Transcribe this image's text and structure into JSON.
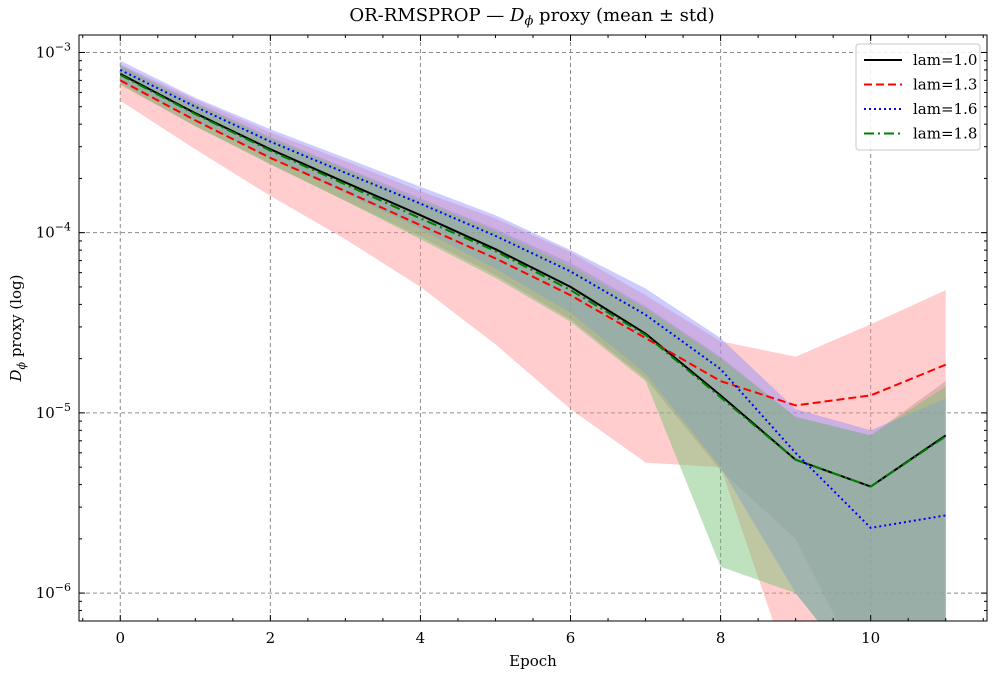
{
  "chart_data": {
    "type": "line",
    "title_prefix": "OR-RMSPROP — ",
    "title_symbol": "D",
    "title_subscript": "ϕ",
    "title_suffix": " proxy (mean ± std)",
    "xlabel": "Epoch",
    "ylabel_symbol": "D",
    "ylabel_subscript": "ϕ",
    "ylabel_suffix": " proxy (log)",
    "yscale": "log",
    "xlim": [
      -0.55,
      11.55
    ],
    "ylim": [
      7e-07,
      0.00125
    ],
    "xticks": [
      0,
      2,
      4,
      6,
      8,
      10
    ],
    "xtick_labels": [
      "0",
      "2",
      "4",
      "6",
      "8",
      "10"
    ],
    "yticks": [
      1e-06,
      1e-05,
      0.0001,
      0.001
    ],
    "ytick_labels": [
      {
        "base": "10",
        "exp": "−6"
      },
      {
        "base": "10",
        "exp": "−5"
      },
      {
        "base": "10",
        "exp": "−4"
      },
      {
        "base": "10",
        "exp": "−3"
      }
    ],
    "grid": true,
    "legend_position": "top-right",
    "x": [
      0,
      1,
      2,
      3,
      4,
      5,
      6,
      7,
      8,
      9,
      10,
      11
    ],
    "series": [
      {
        "name": "lam=1.0",
        "color": "#000000",
        "fill": "#8a8a8a",
        "dash": "solid",
        "values": [
          0.00076,
          0.00046,
          0.00029,
          0.00019,
          0.000125,
          8.1e-05,
          5e-05,
          2.75e-05,
          1.25e-05,
          5.5e-06,
          3.9e-06,
          7.5e-06
        ],
        "lower": [
          0.00066,
          0.00039,
          0.00024,
          0.00015,
          9.5e-05,
          5.8e-05,
          3.3e-05,
          1.55e-05,
          4.8e-06,
          2e-06,
          3e-07,
          3e-07
        ],
        "upper": [
          0.00085,
          0.00053,
          0.00034,
          0.00023,
          0.000155,
          0.000105,
          6.8e-05,
          3.9e-05,
          2.05e-05,
          9.5e-06,
          7.5e-06,
          1.5e-05
        ]
      },
      {
        "name": "lam=1.3",
        "color": "#ff0000",
        "fill": "#ff9090",
        "dash": "dashed",
        "values": [
          0.0007,
          0.00042,
          0.00026,
          0.00017,
          0.00011,
          7.2e-05,
          4.5e-05,
          2.6e-05,
          1.5e-05,
          1.1e-05,
          1.25e-05,
          1.85e-05
        ],
        "lower": [
          0.00054,
          0.00029,
          0.00016,
          9.2e-05,
          5e-05,
          2.4e-05,
          1.05e-05,
          5.3e-06,
          5e-06,
          3e-07,
          3e-07,
          3e-07
        ],
        "upper": [
          0.00086,
          0.00055,
          0.00036,
          0.00025,
          0.00017,
          0.00012,
          7.8e-05,
          4.5e-05,
          2.5e-05,
          2.05e-05,
          3.1e-05,
          4.8e-05
        ]
      },
      {
        "name": "lam=1.6",
        "color": "#0000ff",
        "fill": "#8f8fff",
        "dash": "dotted",
        "values": [
          0.0008,
          0.0005,
          0.00032,
          0.000215,
          0.000145,
          9.6e-05,
          6.1e-05,
          3.5e-05,
          1.75e-05,
          6e-06,
          2.3e-06,
          2.7e-06
        ],
        "lower": [
          0.0007,
          0.00042,
          0.00026,
          0.000165,
          0.000105,
          6.3e-05,
          3.6e-05,
          1.65e-05,
          5e-06,
          1e-06,
          3e-07,
          3e-07
        ],
        "upper": [
          0.0009,
          0.00056,
          0.000375,
          0.00026,
          0.00018,
          0.000125,
          8e-05,
          4.9e-05,
          2.6e-05,
          1.05e-05,
          8e-06,
          1.2e-05
        ]
      },
      {
        "name": "lam=1.8",
        "color": "#008000",
        "fill": "#6fbf6f",
        "dash": "dashdot",
        "values": [
          0.00075,
          0.000455,
          0.000285,
          0.000185,
          0.00012,
          7.9e-05,
          4.8e-05,
          2.7e-05,
          1.22e-05,
          5.5e-06,
          3.9e-06,
          7.4e-06
        ],
        "lower": [
          0.00067,
          0.00039,
          0.00024,
          0.00015,
          9.2e-05,
          5.6e-05,
          3.2e-05,
          1.5e-05,
          1.4e-06,
          1e-06,
          3e-07,
          3e-07
        ],
        "upper": [
          0.00084,
          0.00052,
          0.000335,
          0.000225,
          0.00015,
          0.000102,
          6.5e-05,
          3.8e-05,
          2e-05,
          9.5e-06,
          7.5e-06,
          1.4e-05
        ]
      }
    ]
  }
}
